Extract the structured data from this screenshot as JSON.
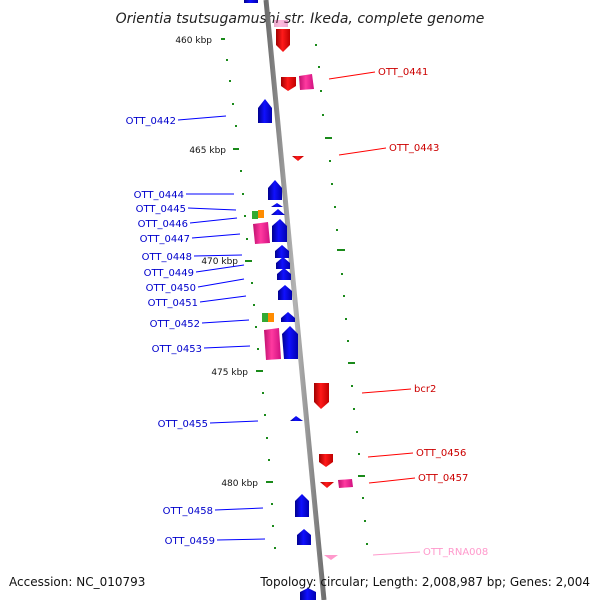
{
  "title": "Orientia tsutsugamushi str. Ikeda, complete genome",
  "footer": {
    "accession": "Accession: NC_010793",
    "summary": "Topology: circular; Length: 2,008,987 bp; Genes: 2,004"
  },
  "scale": {
    "ticks": [
      "460 kbp",
      "465 kbp",
      "470 kbp",
      "475 kbp",
      "480 kbp"
    ]
  },
  "colors": {
    "forward_gene": "#0000ff",
    "reverse_gene": "#ff0000",
    "pseudo_pink": "#ff1493",
    "rna": "#ff99cc",
    "tick": "#1a8a1a",
    "backbone": "#8c8c8c",
    "mix_green": "#33aa33",
    "mix_orange": "#ff8c00"
  },
  "gene_labels": {
    "left": [
      "OTT_0442",
      "OTT_0444",
      "OTT_0445",
      "OTT_0446",
      "OTT_0447",
      "OTT_0448",
      "OTT_0449",
      "OTT_0450",
      "OTT_0451",
      "OTT_0452",
      "OTT_0453",
      "OTT_0455",
      "OTT_0458",
      "OTT_0459"
    ],
    "right": [
      "OTT_0441",
      "OTT_0443",
      "bcr2",
      "OTT_0456",
      "OTT_0457",
      "OTT_RNA008"
    ]
  }
}
